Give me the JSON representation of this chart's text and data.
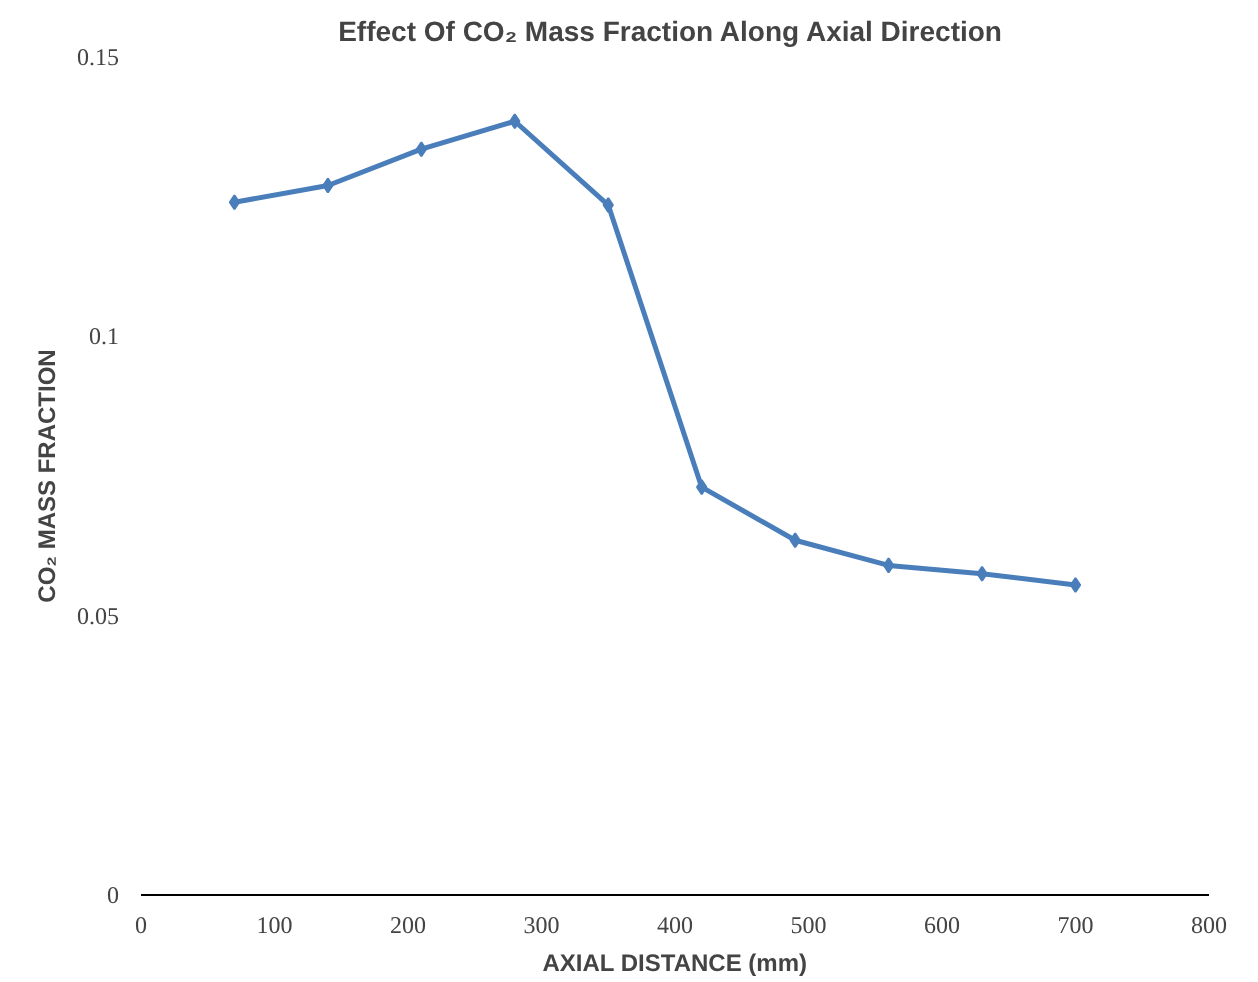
{
  "chart_data": {
    "type": "line",
    "title": "Effect Of  CO₂ Mass Fraction Along Axial Direction",
    "xlabel": "AXIAL DISTANCE (mm)",
    "ylabel": "CO₂ MASS FRACTION",
    "x": [
      70,
      140,
      210,
      280,
      350,
      420,
      490,
      560,
      630,
      700
    ],
    "series": [
      {
        "color": "#4a7ebb",
        "values": [
          0.124,
          0.127,
          0.1335,
          0.1385,
          0.1235,
          0.073,
          0.0635,
          0.059,
          0.0575,
          0.0555
        ]
      }
    ],
    "xlim": [
      0,
      800
    ],
    "xticks": [
      0,
      100,
      200,
      300,
      400,
      500,
      600,
      700,
      800
    ],
    "ylim": [
      0,
      0.15
    ],
    "yticks": [
      0,
      0.05,
      0.1,
      0.15
    ],
    "grid": false,
    "marker": "diamond",
    "line_style": "solid"
  }
}
